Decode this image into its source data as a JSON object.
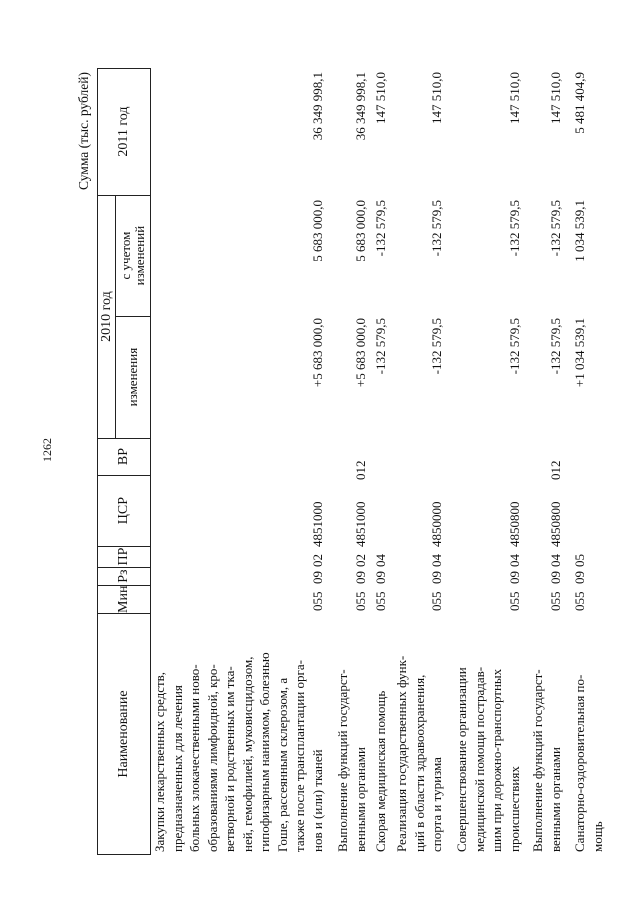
{
  "page_number": "1262",
  "units_label": "Сумма (тыс. рублей)",
  "header": {
    "name": "Наименование",
    "min": "Мин",
    "rz": "Рз",
    "pr": "ПР",
    "csr": "ЦСР",
    "vr": "ВР",
    "year2010": "2010 год",
    "changes": "изменения",
    "with_changes": "с учетом изменений",
    "year2011": "2011 год"
  },
  "rows": [
    {
      "name_lines": [
        "Закупки лекарственных средств,",
        "предназначенных для лечения",
        "больных злокачественными ново-",
        "образованиями лимфоидной, кро-",
        "ветворной и родственных им тка-",
        "ней, гемофилией, муковисцидозом,",
        "гипофизарным нанизмом, болезнью",
        "Гоше,  рассеянным склерозом, а",
        "также после трансплантации орга-",
        "нов и (или) тканей"
      ],
      "min": "055",
      "rz": "09",
      "pr": "02",
      "csr": "4851000",
      "vr": "",
      "changes": "+5 683 000,0",
      "with_changes": "5 683 000,0",
      "y2011": "36 349 998,1"
    },
    {
      "name_lines": [
        "Выполнение функций государст-",
        "венными органами"
      ],
      "min": "055",
      "rz": "09",
      "pr": "02",
      "csr": "4851000",
      "vr": "012",
      "changes": "+5 683 000,0",
      "with_changes": "5 683 000,0",
      "y2011": "36 349 998,1"
    },
    {
      "name_lines": [
        "Скорая медицинская помощь"
      ],
      "min": "055",
      "rz": "09",
      "pr": "04",
      "csr": "",
      "vr": "",
      "changes": "-132 579,5",
      "with_changes": "-132 579,5",
      "y2011": "147 510,0"
    },
    {
      "name_lines": [
        "Реализация государственных функ-",
        "ций в области здравоохранения,",
        "спорта и туризма"
      ],
      "min": "055",
      "rz": "09",
      "pr": "04",
      "csr": "4850000",
      "vr": "",
      "changes": "-132 579,5",
      "with_changes": "-132 579,5",
      "y2011": "147 510,0"
    },
    {
      "name_lines": [
        "Совершенствование организации",
        "медицинской помощи пострадав-",
        "шим при дорожно-транспортных",
        "происшествиях"
      ],
      "min": "055",
      "rz": "09",
      "pr": "04",
      "csr": "4850800",
      "vr": "",
      "changes": "-132 579,5",
      "with_changes": "-132 579,5",
      "y2011": "147 510,0"
    },
    {
      "name_lines": [
        "Выполнение функций государст-",
        "венными органами"
      ],
      "min": "055",
      "rz": "09",
      "pr": "04",
      "csr": "4850800",
      "vr": "012",
      "changes": "-132 579,5",
      "with_changes": "-132 579,5",
      "y2011": "147 510,0"
    },
    {
      "name_lines": [
        "Санаторно-оздоровительная по-",
        "мощь"
      ],
      "min": "055",
      "rz": "09",
      "pr": "05",
      "csr": "",
      "vr": "",
      "changes": "+1 034 539,1",
      "with_changes": "1 034 539,1",
      "y2011": "5 481 404,9"
    }
  ]
}
